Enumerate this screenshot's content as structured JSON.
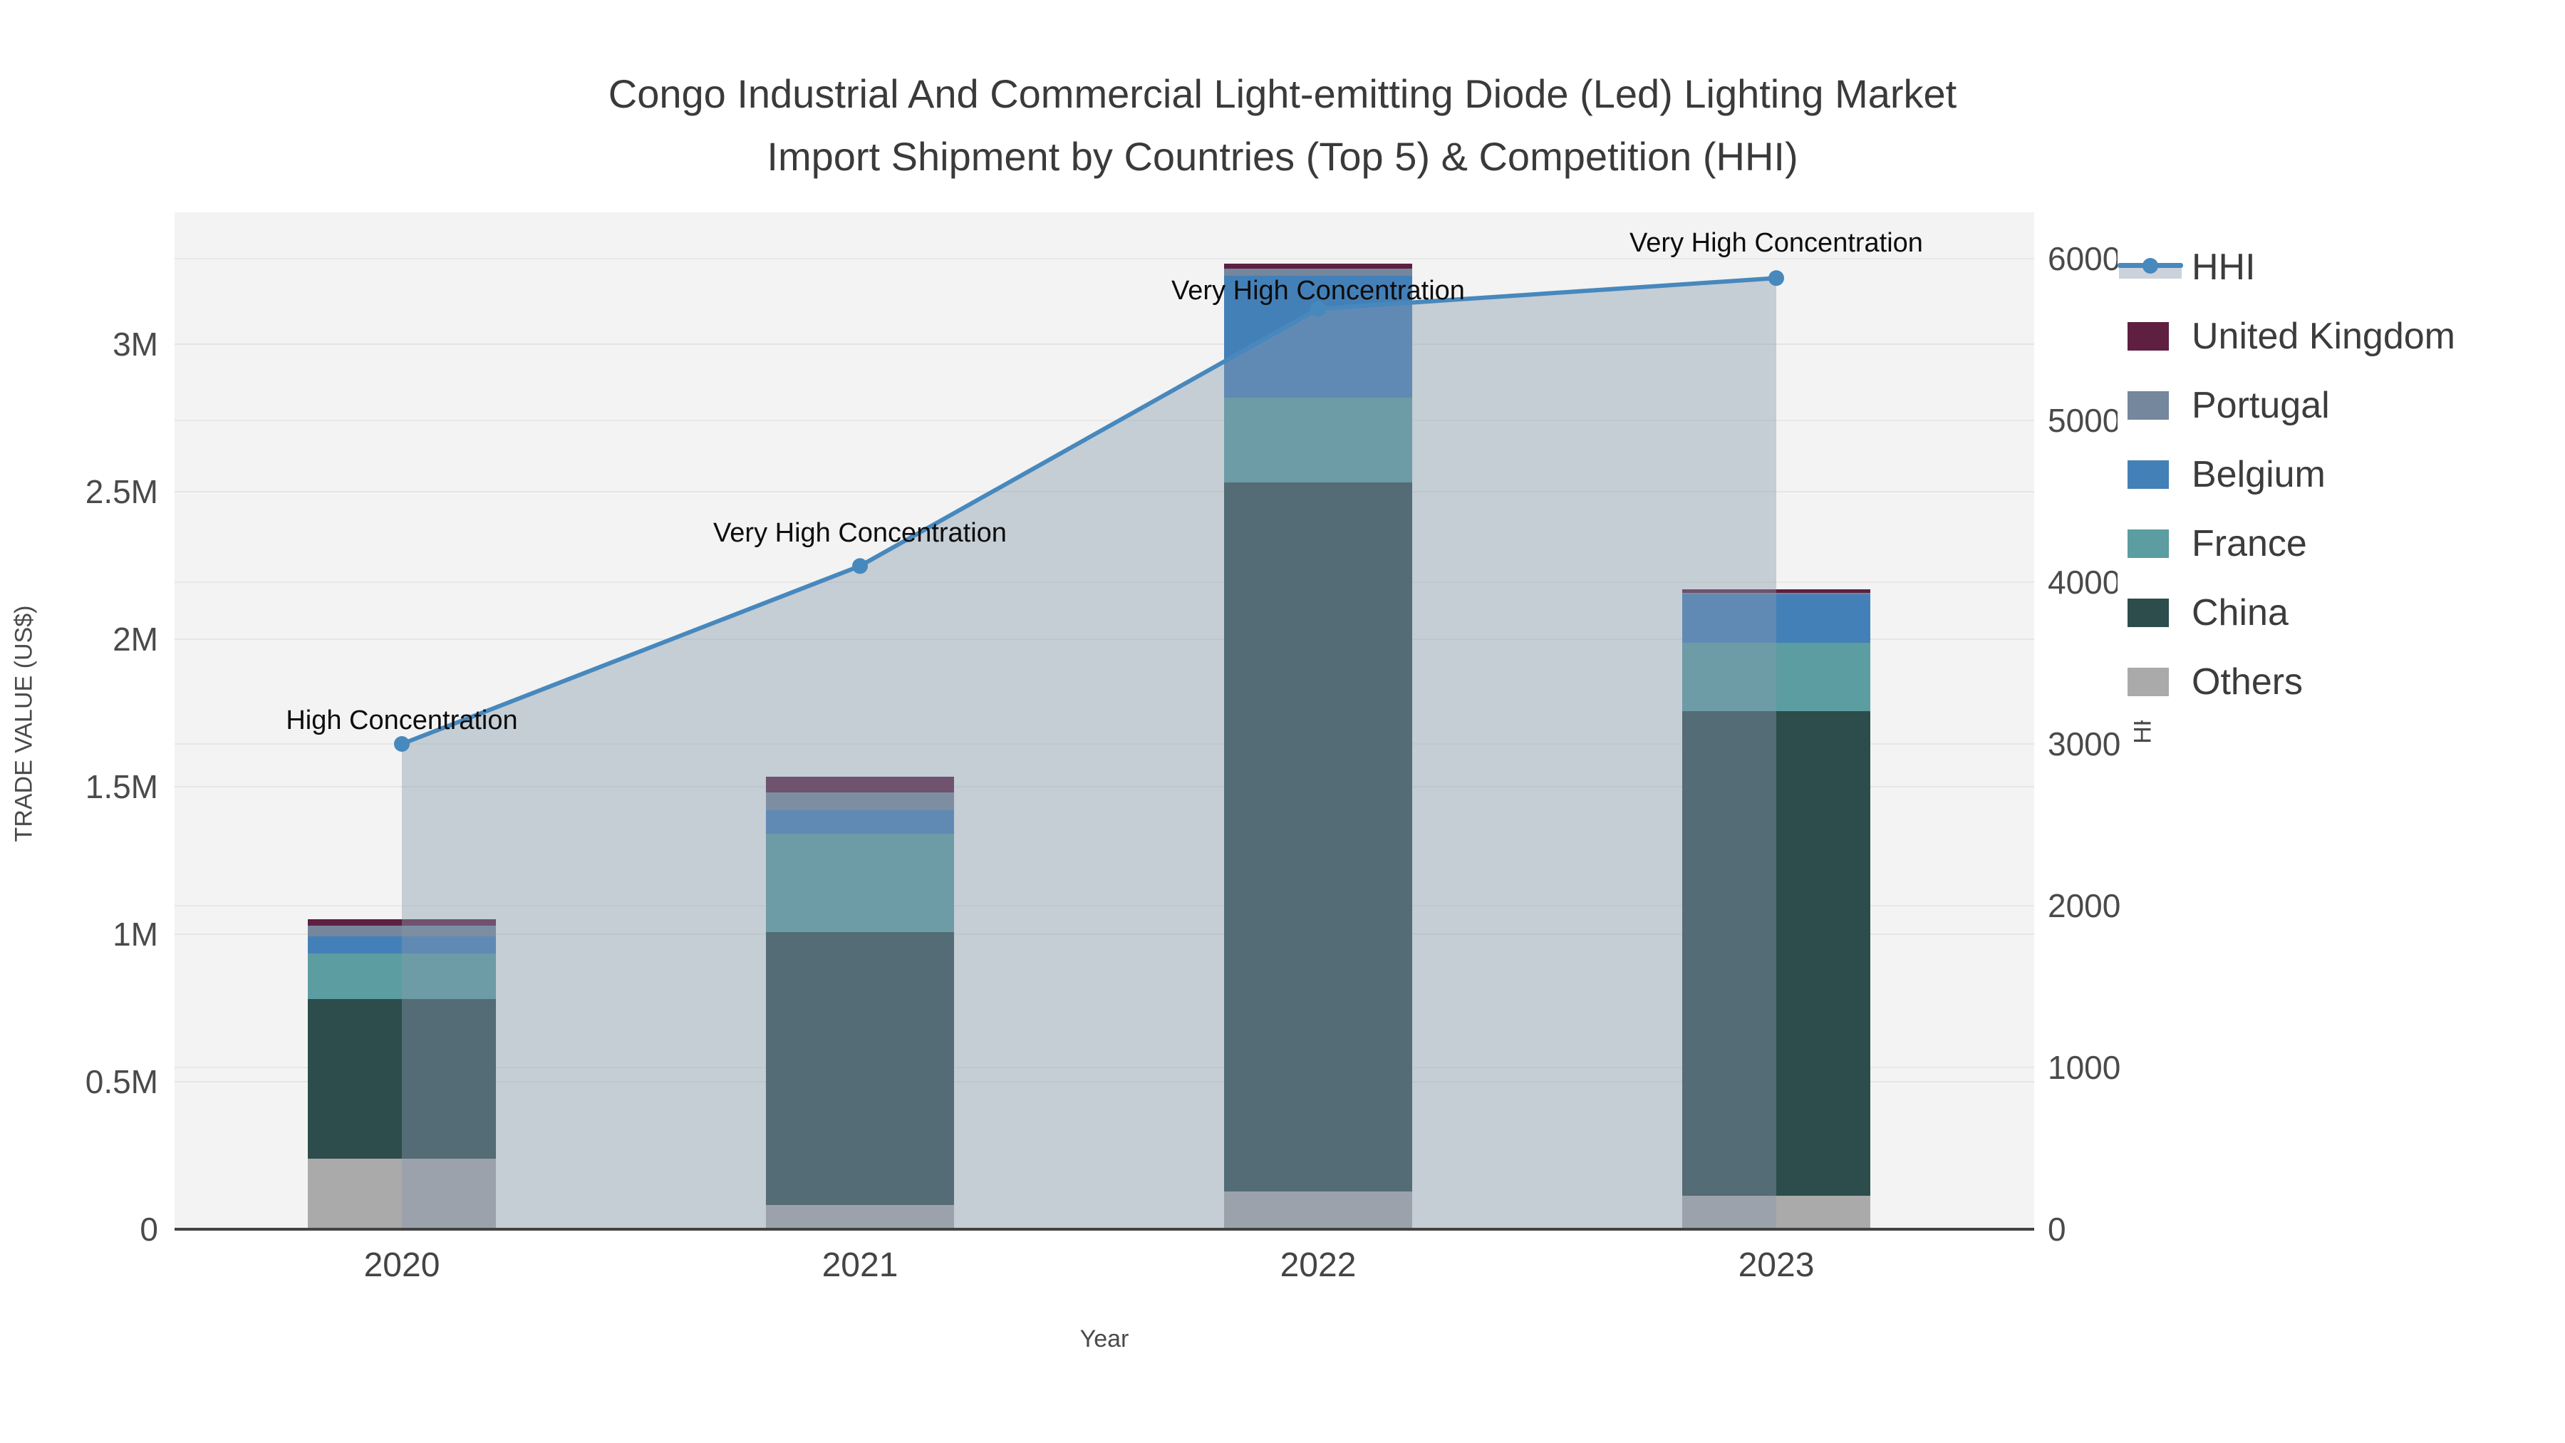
{
  "title": {
    "line1": "Congo Industrial And Commercial Light-emitting Diode (Led) Lighting Market",
    "line2": "Import Shipment by Countries (Top 5) & Competition (HHI)"
  },
  "chart_data": {
    "type": "bar+line",
    "categories": [
      "2020",
      "2021",
      "2022",
      "2023"
    ],
    "series": [
      {
        "name": "Others",
        "color": "#aaaaaa",
        "values": [
          240000,
          82000,
          128000,
          114000
        ]
      },
      {
        "name": "China",
        "color": "#2d4c4c",
        "values": [
          540000,
          925000,
          2404000,
          1642000
        ]
      },
      {
        "name": "France",
        "color": "#5b9da0",
        "values": [
          155000,
          334000,
          287000,
          232000
        ]
      },
      {
        "name": "Belgium",
        "color": "#4480b8",
        "values": [
          58000,
          79000,
          413000,
          164000
        ]
      },
      {
        "name": "Portugal",
        "color": "#75879c",
        "values": [
          37000,
          61000,
          24000,
          5000
        ]
      },
      {
        "name": "United Kingdom",
        "color": "#5e1f41",
        "values": [
          21000,
          53000,
          17000,
          12000
        ]
      }
    ],
    "hhi_line": {
      "name": "HHI",
      "color": "#4788bd",
      "fill_color": "rgba(136,152,173,0.42)",
      "values": [
        3000,
        4100,
        5690,
        5880
      ]
    },
    "annotations": [
      {
        "category": "2020",
        "text": "High Concentration"
      },
      {
        "category": "2021",
        "text": "Very High Concentration"
      },
      {
        "category": "2022",
        "text": "Very High Concentration"
      },
      {
        "category": "2023",
        "text": "Very High Concentration"
      }
    ],
    "xlabel": "Year",
    "ylabel_left": "TRADE VALUE (US$)",
    "ylabel_right": "HHI",
    "yticks_left": [
      "0",
      "0.5M",
      "1M",
      "1.5M",
      "2M",
      "2.5M",
      "3M"
    ],
    "yticks_left_values": [
      0,
      500000,
      1000000,
      1500000,
      2000000,
      2500000,
      3000000
    ],
    "yticks_right": [
      "0",
      "1000",
      "2000",
      "3000",
      "4000",
      "5000",
      "6000"
    ],
    "yticks_right_values": [
      0,
      1000,
      2000,
      3000,
      4000,
      5000,
      6000
    ],
    "ylim_left": [
      0,
      3450000
    ],
    "ylim_right": [
      0,
      6290
    ],
    "grid": true,
    "legend_position": "right",
    "legend": [
      "HHI",
      "United Kingdom",
      "Portugal",
      "Belgium",
      "France",
      "China",
      "Others"
    ]
  },
  "colors": {
    "plot_background": "#f2f3f2",
    "page_background": "#ffffff",
    "hhi_line": "#4788bd",
    "hhi_area": "rgba(136,152,173,0.42)",
    "axis_line": "#424242",
    "united_kingdom": "#5e1f41",
    "portugal": "#75879c",
    "belgium": "#4480b8",
    "france": "#5b9da0",
    "china": "#2d4c4c",
    "others": "#aaaaaa"
  }
}
